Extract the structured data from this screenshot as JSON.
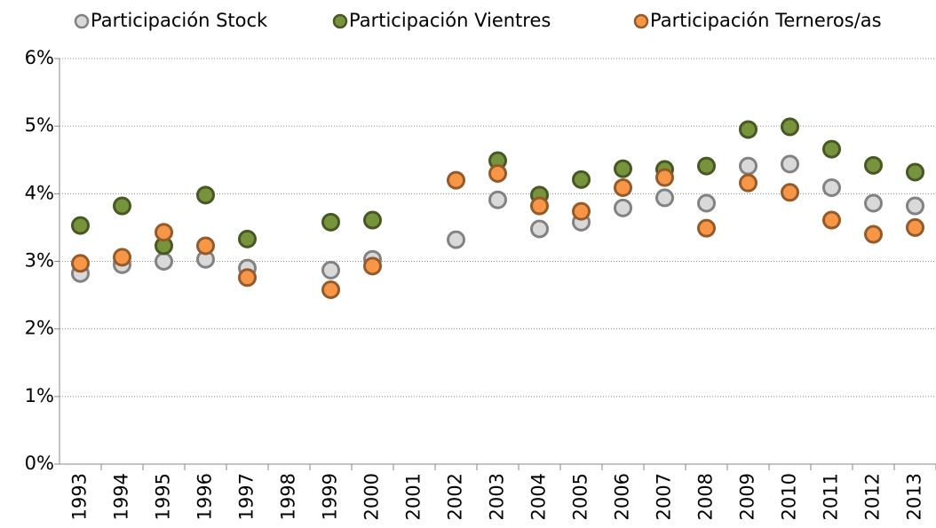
{
  "chart_data": {
    "type": "scatter",
    "categories": [
      "1993",
      "1994",
      "1995",
      "1996",
      "1997",
      "1998",
      "1999",
      "2000",
      "2001",
      "2002",
      "2003",
      "2004",
      "2005",
      "2006",
      "2007",
      "2008",
      "2009",
      "2010",
      "2011",
      "2012",
      "2013"
    ],
    "series": [
      {
        "name": "Participación Stock",
        "color": "#d9d9d9",
        "values": [
          2.82,
          2.95,
          3.0,
          3.03,
          2.9,
          null,
          2.87,
          3.03,
          null,
          3.32,
          3.91,
          3.48,
          3.58,
          3.79,
          3.94,
          3.86,
          4.41,
          4.44,
          4.09,
          3.86,
          3.82
        ]
      },
      {
        "name": "Participación Vientres",
        "color": "#77933c",
        "values": [
          3.53,
          3.82,
          3.23,
          3.98,
          3.33,
          null,
          3.58,
          3.61,
          null,
          null,
          4.49,
          3.98,
          4.21,
          4.37,
          4.36,
          4.41,
          4.95,
          4.99,
          4.66,
          4.42,
          4.32
        ]
      },
      {
        "name": "Participación Terneros/as",
        "color": "#f79646",
        "values": [
          2.97,
          3.06,
          3.43,
          3.23,
          2.76,
          null,
          2.58,
          2.93,
          null,
          4.2,
          4.3,
          3.82,
          3.74,
          4.09,
          4.24,
          3.49,
          4.16,
          4.02,
          3.61,
          3.4,
          3.5
        ]
      }
    ],
    "ylim": [
      0,
      6
    ],
    "yticks": [
      {
        "value": 0,
        "label": "0%"
      },
      {
        "value": 1,
        "label": "1%"
      },
      {
        "value": 2,
        "label": "2%"
      },
      {
        "value": 3,
        "label": "3%"
      },
      {
        "value": 4,
        "label": "4%"
      },
      {
        "value": 5,
        "label": "5%"
      },
      {
        "value": 6,
        "label": "6%"
      }
    ],
    "grid": true,
    "legend": "top"
  }
}
